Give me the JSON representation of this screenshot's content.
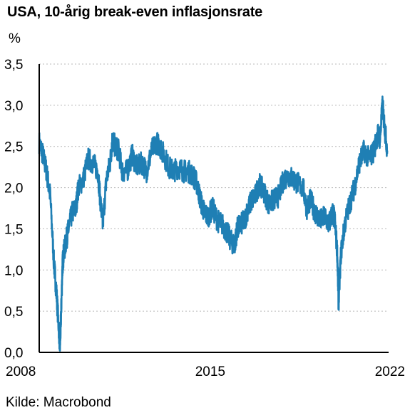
{
  "header": {
    "title": "USA, 10-årig break-even inflasjonsrate",
    "unit": "%"
  },
  "footer": {
    "source": "Kilde: Macrobond"
  },
  "colors": {
    "series": "#1f7fb4",
    "grid": "#b8b8b8",
    "axis": "#000000"
  },
  "chart_data": {
    "type": "line",
    "title": "USA, 10-årig break-even inflasjonsrate",
    "xlabel": "",
    "ylabel": "%",
    "xlim": [
      2008.0,
      2022.3
    ],
    "ylim": [
      0,
      3.5
    ],
    "yticks": [
      "0,0",
      "0,5",
      "1,0",
      "1,5",
      "2,0",
      "2,5",
      "3,0",
      "3,5"
    ],
    "ytick_values": [
      0,
      0.5,
      1.0,
      1.5,
      2.0,
      2.5,
      3.0,
      3.5
    ],
    "xticks": [
      "2008",
      "2015",
      "2022"
    ],
    "xtick_values": [
      2008,
      2015,
      2022
    ],
    "grid": "horizontal dashed",
    "legend": "none",
    "series": [
      {
        "x": [
          2008.0,
          2008.15,
          2008.3,
          2008.45,
          2008.6,
          2008.7,
          2008.8,
          2008.85,
          2008.9,
          2008.95,
          2009.0,
          2009.1,
          2009.2,
          2009.35,
          2009.5,
          2009.6,
          2009.8,
          2010.0,
          2010.2,
          2010.4,
          2010.5,
          2010.6,
          2010.75,
          2010.9,
          2011.0,
          2011.1,
          2011.25,
          2011.4,
          2011.6,
          2011.8,
          2012.0,
          2012.2,
          2012.4,
          2012.6,
          2012.8,
          2012.95,
          2013.1,
          2013.3,
          2013.5,
          2013.7,
          2013.9,
          2014.1,
          2014.3,
          2014.45,
          2014.6,
          2014.75,
          2014.9,
          2015.1,
          2015.3,
          2015.5,
          2015.7,
          2015.85,
          2016.0,
          2016.1,
          2016.25,
          2016.4,
          2016.55,
          2016.7,
          2016.85,
          2017.0,
          2017.2,
          2017.4,
          2017.6,
          2017.8,
          2018.0,
          2018.2,
          2018.4,
          2018.6,
          2018.8,
          2018.95,
          2019.1,
          2019.3,
          2019.5,
          2019.7,
          2019.85,
          2020.0,
          2020.1,
          2020.2,
          2020.25,
          2020.35,
          2020.5,
          2020.7,
          2020.9,
          2021.1,
          2021.3,
          2021.5,
          2021.7,
          2021.85,
          2021.95,
          2022.05,
          2022.15,
          2022.25
        ],
        "values": [
          2.55,
          2.4,
          2.2,
          1.9,
          1.1,
          0.75,
          0.3,
          0.05,
          0.5,
          1.05,
          1.2,
          1.35,
          1.5,
          1.7,
          1.75,
          2.0,
          2.1,
          2.35,
          2.3,
          2.2,
          1.85,
          1.55,
          2.1,
          2.3,
          2.6,
          2.5,
          2.45,
          2.2,
          2.2,
          2.4,
          2.25,
          2.3,
          2.2,
          2.45,
          2.55,
          2.5,
          2.4,
          2.25,
          2.2,
          2.25,
          2.2,
          2.2,
          2.15,
          2.05,
          1.85,
          1.7,
          1.65,
          1.75,
          1.6,
          1.55,
          1.45,
          1.35,
          1.3,
          1.5,
          1.55,
          1.6,
          1.75,
          1.85,
          1.9,
          2.05,
          1.95,
          1.8,
          1.85,
          1.9,
          2.1,
          2.15,
          2.1,
          2.05,
          2.0,
          1.75,
          1.85,
          1.7,
          1.6,
          1.65,
          1.55,
          1.7,
          1.6,
          1.2,
          0.6,
          1.2,
          1.55,
          1.8,
          2.0,
          2.3,
          2.45,
          2.35,
          2.45,
          2.65,
          2.6,
          3.0,
          2.7,
          2.45
        ]
      }
    ]
  }
}
